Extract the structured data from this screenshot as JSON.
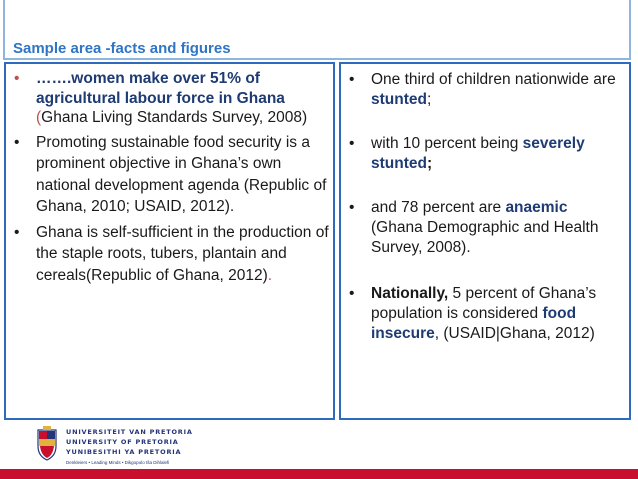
{
  "header": {
    "title": "Sample area -facts and figures"
  },
  "left_column": {
    "bullet": "•",
    "item1": {
      "lead": "…….women make over 51% of agricultural labour force in Ghana",
      "paren_open": "(",
      "citation": "Ghana Living Standards Survey, 2008)"
    },
    "item2": {
      "text": "Promoting sustainable food security is a prominent objective in Ghana’s own national development agenda (Republic of Ghana, 2010; USAID,",
      "year": "2012)",
      "end": "."
    },
    "item3": {
      "text": "Ghana is self-sufficient in the production of the staple roots, tubers, plantain and cereals(Republic of",
      "tail": "Ghana, 2012)",
      "end": "."
    }
  },
  "right_column": {
    "bullet": "•",
    "item1": {
      "text": "One third of children nationwide are ",
      "highlight": "stunted",
      "end": ";"
    },
    "item2": {
      "text": "with 10 percent being ",
      "highlight": "severely stunted",
      "end": ";"
    },
    "item3": {
      "text": "and 78 percent are ",
      "highlight": "anaemic",
      "citation": "(Ghana Demographic and Health Survey, 2008)."
    },
    "item4": {
      "lead": "Nationally,",
      "text": " 5 percent of Ghana’s population is considered ",
      "highlight": "food insecure",
      "citation": ", (USAID|Ghana, 2012)"
    }
  },
  "logo": {
    "line1": "UNIVERSITEIT VAN PRETORIA",
    "line2": "UNIVERSITY OF PRETORIA",
    "line3": "YUNIBESITHI YA PRETORIA",
    "tagline": "Denkleiers • Leading Minds • Dikgopolo tša Dihlalefi"
  },
  "colors": {
    "title": "#2e75c5",
    "border": "#2e6bbf",
    "accent": "#1f3b73",
    "footer": "#c8102e"
  }
}
